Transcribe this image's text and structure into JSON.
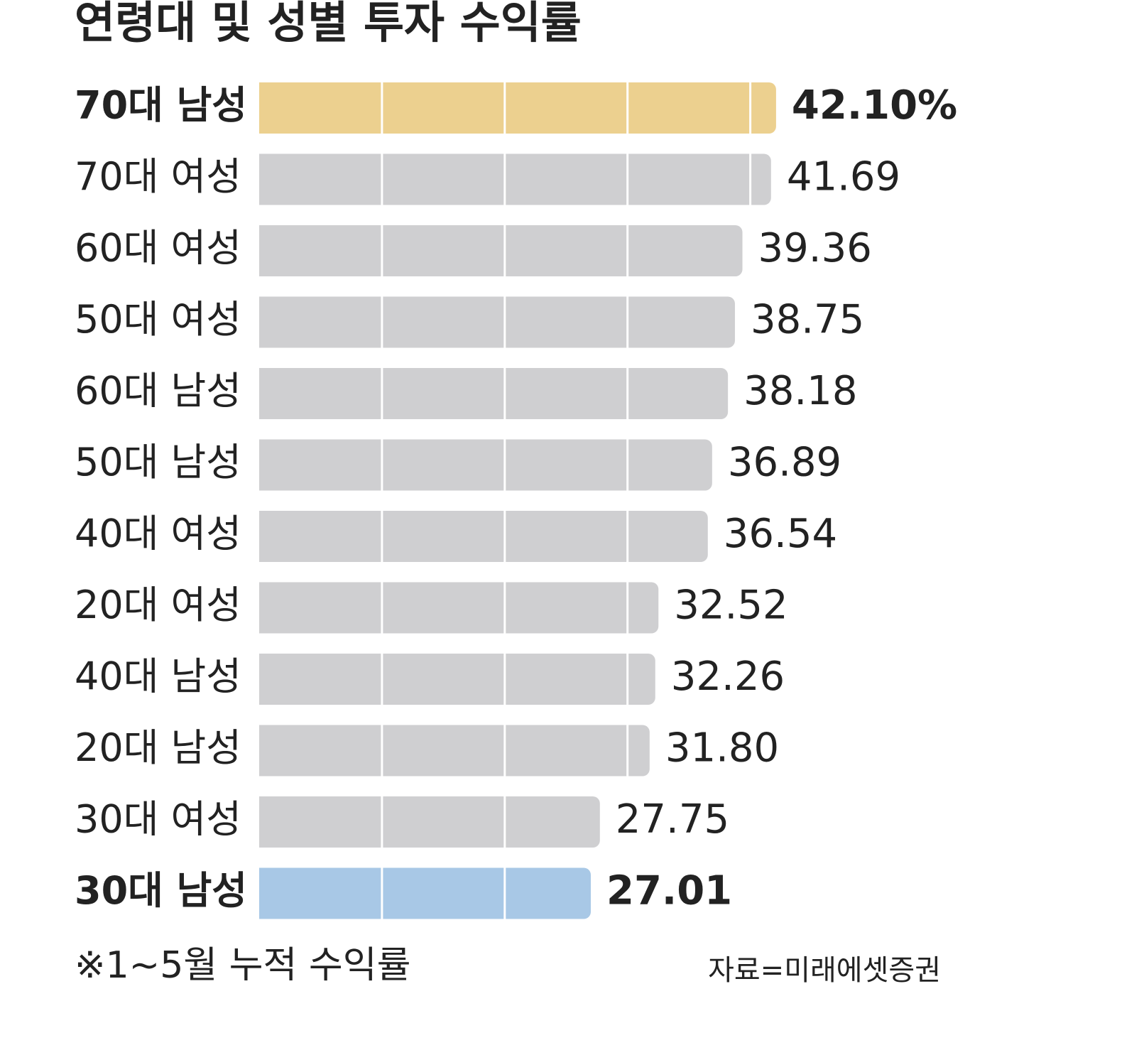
{
  "chart_data": {
    "type": "bar",
    "orientation": "horizontal",
    "title": "연령대 및 성별 투자 수익률",
    "categories": [
      "70대 남성",
      "70대 여성",
      "60대 여성",
      "50대 여성",
      "60대 남성",
      "50대 남성",
      "40대 여성",
      "20대 여성",
      "40대 남성",
      "20대 남성",
      "30대 여성",
      "30대 남성"
    ],
    "values": [
      42.1,
      41.69,
      39.36,
      38.75,
      38.18,
      36.89,
      36.54,
      32.52,
      32.26,
      31.8,
      27.75,
      27.01
    ],
    "value_labels": [
      "42.10%",
      "41.69",
      "39.36",
      "38.75",
      "38.18",
      "36.89",
      "36.54",
      "32.52",
      "32.26",
      "31.80",
      "27.75",
      "27.01"
    ],
    "colors": [
      "#ecd08f",
      "#cfcfd1",
      "#cfcfd1",
      "#cfcfd1",
      "#cfcfd1",
      "#cfcfd1",
      "#cfcfd1",
      "#cfcfd1",
      "#cfcfd1",
      "#cfcfd1",
      "#cfcfd1",
      "#a8c8e6"
    ],
    "bold": [
      true,
      false,
      false,
      false,
      false,
      false,
      false,
      false,
      false,
      false,
      false,
      true
    ],
    "xlim": [
      0,
      50
    ],
    "xticks": [
      10,
      20,
      30,
      40
    ],
    "footnote": "※1~5월 누적 수익률",
    "source": "자료=미래에셋증권"
  }
}
